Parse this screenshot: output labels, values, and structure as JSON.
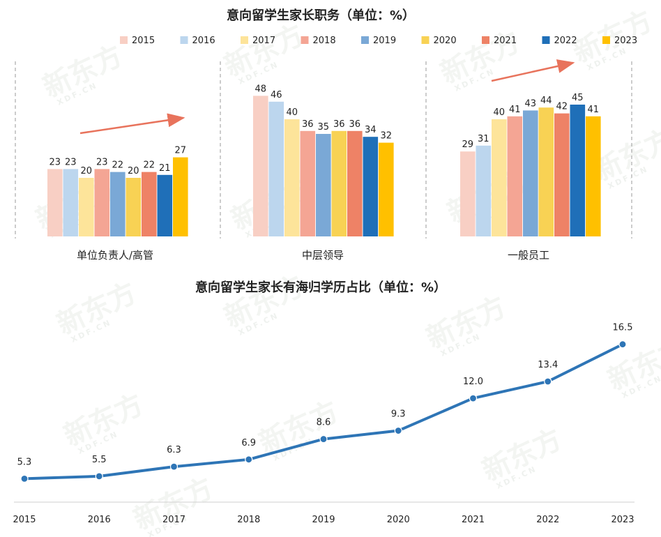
{
  "watermark": {
    "text": "新东方",
    "subtext": "XDF.CN"
  },
  "colors": {
    "trend_arrow": "#e8735c",
    "line": "#2e75b6",
    "text": "#222222"
  },
  "chart_data": [
    {
      "type": "bar",
      "title": "意向留学生家长职务（单位：%）",
      "series_colors": [
        "#f8cfc4",
        "#bcd6ee",
        "#fde49a",
        "#f4a594",
        "#7aa8d6",
        "#f8d254",
        "#ee8266",
        "#1f6fb8",
        "#ffc000"
      ],
      "series": [
        {
          "name": "2015",
          "values": [
            23,
            48,
            29
          ]
        },
        {
          "name": "2016",
          "values": [
            23,
            46,
            31
          ]
        },
        {
          "name": "2017",
          "values": [
            20,
            40,
            40
          ]
        },
        {
          "name": "2018",
          "values": [
            23,
            36,
            41
          ]
        },
        {
          "name": "2019",
          "values": [
            22,
            35,
            43
          ]
        },
        {
          "name": "2020",
          "values": [
            20,
            36,
            44
          ]
        },
        {
          "name": "2021",
          "values": [
            22,
            36,
            42
          ]
        },
        {
          "name": "2022",
          "values": [
            21,
            34,
            45
          ]
        },
        {
          "name": "2023",
          "values": [
            27,
            32,
            41
          ]
        }
      ],
      "categories": [
        "单位负责人/高管",
        "中层领导",
        "一般员工"
      ],
      "legend_position": "top",
      "ylim": [
        0,
        50
      ],
      "grid": false
    },
    {
      "type": "line",
      "title": "意向留学生家长有海归学历占比（单位：%）",
      "x": [
        "2015",
        "2016",
        "2017",
        "2018",
        "2019",
        "2020",
        "2021",
        "2022",
        "2023"
      ],
      "values": [
        5.3,
        5.5,
        6.3,
        6.9,
        8.6,
        9.3,
        12.0,
        13.4,
        16.5
      ],
      "value_labels": [
        "5.3",
        "5.5",
        "6.3",
        "6.9",
        "8.6",
        "9.3",
        "12.0",
        "13.4",
        "16.5"
      ],
      "ylim": [
        0,
        18
      ],
      "grid": false
    }
  ]
}
